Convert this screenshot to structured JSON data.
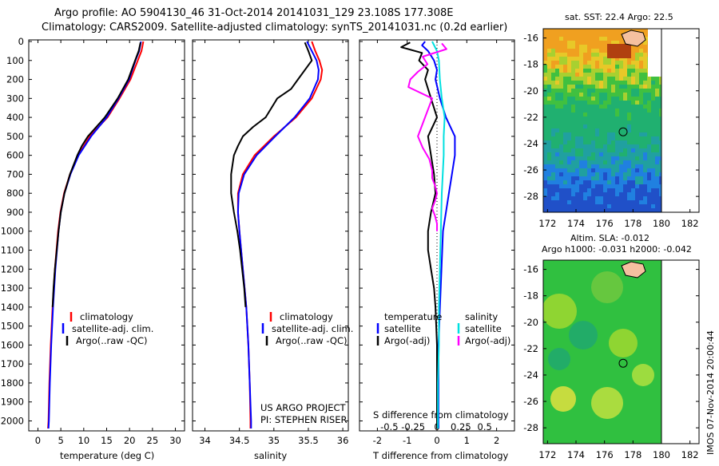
{
  "header": {
    "line1": "Argo profile: AO 5904130_46 31-Oct-2014 20141031_129 23.108S 177.308E",
    "line2": "Climatology: CARS2009. Satellite-adjusted climatology: synTS_20141031.nc (0.2d earlier)"
  },
  "depth_ticks": [
    "0",
    "100",
    "200",
    "300",
    "400",
    "500",
    "600",
    "700",
    "800",
    "900",
    "1000",
    "1100",
    "1200",
    "1300",
    "1400",
    "1500",
    "1600",
    "1700",
    "1800",
    "1900",
    "2000"
  ],
  "colors": {
    "climatology": "#ff0000",
    "satellite": "#0000ff",
    "argo": "#000000",
    "sat_salinity": "#00e0e0",
    "argo_salinity": "#ff00ff"
  },
  "legend": {
    "climatology": "climatology",
    "satellite_clim": "satellite-adj. clim.",
    "argo_raw": "Argo(..raw -QC)",
    "temperature": "temperature",
    "salinity": "salinity",
    "satellite": "satellite",
    "argo_adj": "Argo(-adj)"
  },
  "credits": {
    "project": "US ARGO PROJECT",
    "pi": "PI: STEPHEN RISER"
  },
  "maps": {
    "sst_title": "sat. SST: 22.4 Argo: 22.5",
    "sla_title1": "Altim. SLA: -0.012",
    "sla_title2": "Argo h1000: -0.031 h2000: -0.042",
    "lat_ticks": [
      "-16",
      "-18",
      "-20",
      "-22",
      "-24",
      "-26",
      "-28"
    ],
    "lon_ticks": [
      "172",
      "174",
      "176",
      "178",
      "180",
      "182"
    ],
    "float_position": {
      "lat": -23.108,
      "lon": 177.308
    }
  },
  "timestamp": "IMOS 07-Nov-2014 20:00:44",
  "chart_data": [
    {
      "type": "line",
      "xlabel": "temperature (deg C)",
      "xticks": [
        "0",
        "5",
        "10",
        "15",
        "20",
        "25",
        "30"
      ],
      "xlim": [
        -2,
        32
      ],
      "ylim": [
        2060,
        0
      ],
      "series": [
        {
          "name": "climatology",
          "depth": [
            0,
            50,
            100,
            200,
            300,
            400,
            500,
            600,
            700,
            800,
            900,
            1000,
            1200,
            1400,
            1600,
            1800,
            2000,
            2040
          ],
          "values": [
            23.0,
            22.6,
            21.8,
            20.2,
            17.8,
            15.2,
            11.3,
            8.8,
            7.0,
            5.7,
            4.9,
            4.4,
            3.7,
            3.2,
            2.8,
            2.5,
            2.3,
            2.2
          ]
        },
        {
          "name": "satellite-adj. clim.",
          "depth": [
            0,
            50,
            100,
            200,
            300,
            400,
            500,
            600,
            700,
            800,
            900,
            1000,
            1200,
            1400,
            1600,
            1800,
            2000,
            2040
          ],
          "values": [
            22.5,
            22.1,
            21.3,
            19.9,
            17.6,
            15.0,
            11.6,
            8.9,
            7.1,
            5.8,
            5.0,
            4.5,
            3.8,
            3.3,
            2.9,
            2.6,
            2.4,
            2.3
          ]
        },
        {
          "name": "Argo(..raw -QC)",
          "depth": [
            5,
            50,
            100,
            200,
            300,
            400,
            500,
            550,
            600,
            700,
            800,
            900,
            1000,
            1100,
            1200,
            1300,
            1400
          ],
          "values": [
            22.4,
            22.0,
            21.2,
            19.7,
            17.4,
            14.6,
            10.9,
            9.6,
            8.6,
            7.0,
            5.8,
            5.0,
            4.5,
            4.1,
            3.7,
            3.4,
            3.2
          ]
        }
      ]
    },
    {
      "type": "line",
      "xlabel": "salinity",
      "xticks": [
        "34",
        "34.5",
        "35",
        "35.5",
        "36"
      ],
      "xlim": [
        33.82,
        36.08
      ],
      "ylim": [
        2060,
        0
      ],
      "series": [
        {
          "name": "climatology",
          "depth": [
            0,
            50,
            100,
            150,
            200,
            300,
            400,
            500,
            600,
            700,
            800,
            900,
            1000,
            1200,
            1400,
            1600,
            1800,
            2000,
            2040
          ],
          "values": [
            35.55,
            35.6,
            35.66,
            35.7,
            35.68,
            35.55,
            35.32,
            35.0,
            34.72,
            34.55,
            34.48,
            34.48,
            34.5,
            34.55,
            34.6,
            34.63,
            34.65,
            34.66,
            34.66
          ]
        },
        {
          "name": "satellite-adj. clim.",
          "depth": [
            0,
            50,
            100,
            150,
            200,
            300,
            400,
            500,
            600,
            700,
            800,
            900,
            1000,
            1200,
            1400,
            1600,
            1800,
            2000,
            2040
          ],
          "values": [
            35.48,
            35.55,
            35.62,
            35.65,
            35.64,
            35.52,
            35.3,
            35.02,
            34.75,
            34.57,
            34.49,
            34.48,
            34.5,
            34.55,
            34.6,
            34.63,
            34.65,
            34.67,
            34.67
          ]
        },
        {
          "name": "Argo(..raw -QC)",
          "depth": [
            5,
            50,
            100,
            200,
            250,
            300,
            400,
            450,
            500,
            550,
            600,
            700,
            800,
            900,
            1000,
            1100,
            1200,
            1300,
            1400
          ],
          "values": [
            35.45,
            35.5,
            35.55,
            35.35,
            35.25,
            35.05,
            34.88,
            34.7,
            34.55,
            34.48,
            34.42,
            34.38,
            34.38,
            34.42,
            34.47,
            34.51,
            34.54,
            34.57,
            34.59
          ]
        }
      ]
    },
    {
      "type": "line",
      "xlabel": "T difference from climatology",
      "xlabel2": "S difference from climatology",
      "xticks": [
        "-2",
        "-1",
        "0",
        "1",
        "2"
      ],
      "xticks_salinity": [
        "-0.5",
        "-0.25",
        "0",
        "0.25",
        "0.5"
      ],
      "xlim": [
        -2.6,
        2.6
      ],
      "ylim": [
        2060,
        0
      ],
      "series": [
        {
          "name": "temperature satellite",
          "depth": [
            0,
            20,
            50,
            100,
            150,
            200,
            300,
            400,
            500,
            600,
            700,
            800,
            900,
            1000,
            1200,
            1400,
            1600,
            1800,
            2000,
            2040
          ],
          "values": [
            -0.4,
            -0.5,
            -0.3,
            -0.1,
            0.0,
            -0.05,
            0.1,
            0.3,
            0.6,
            0.6,
            0.5,
            0.4,
            0.3,
            0.2,
            0.15,
            0.1,
            0.05,
            0.05,
            0.05,
            0.05
          ]
        },
        {
          "name": "temperature Argo(-adj)",
          "depth": [
            5,
            30,
            60,
            100,
            150,
            200,
            300,
            400,
            500,
            600,
            700,
            800,
            900,
            1000,
            1100,
            1200,
            1300,
            1400,
            1600,
            1800,
            2000,
            2040
          ],
          "values": [
            -0.9,
            -1.2,
            -0.5,
            -0.6,
            -0.3,
            -0.4,
            -0.2,
            0.0,
            -0.3,
            -0.2,
            -0.1,
            -0.05,
            -0.2,
            -0.3,
            -0.3,
            -0.2,
            -0.1,
            -0.05,
            0.0,
            0.0,
            0.0,
            0.0
          ]
        },
        {
          "name": "salinity satellite",
          "depth": [
            0,
            50,
            100,
            200,
            300,
            400,
            500,
            600,
            700,
            800,
            1000,
            1200,
            1400,
            1600,
            1800,
            2000,
            2040
          ],
          "values": [
            -0.05,
            0.0,
            0.02,
            0.03,
            0.05,
            0.08,
            0.07,
            0.07,
            0.06,
            0.05,
            0.04,
            0.03,
            0.02,
            0.02,
            0.01,
            0.01,
            0.01
          ]
        },
        {
          "name": "salinity Argo(-adj)",
          "depth": [
            10,
            40,
            80,
            120,
            160,
            200,
            240,
            300,
            500,
            560,
            620,
            680,
            720,
            760,
            800,
            840,
            880,
            920,
            960,
            1000
          ],
          "values": [
            0.05,
            0.1,
            -0.15,
            -0.1,
            -0.2,
            -0.28,
            -0.3,
            -0.05,
            -0.2,
            -0.15,
            -0.08,
            -0.05,
            -0.05,
            -0.02,
            0.0,
            -0.02,
            -0.05,
            -0.02,
            0.0,
            0.0
          ]
        }
      ]
    }
  ]
}
